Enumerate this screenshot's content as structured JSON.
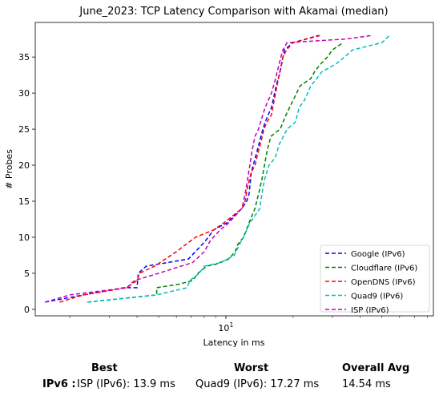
{
  "chart_data": {
    "type": "line",
    "title": "June_2023: TCP Latency Comparison with Akamai (median)",
    "xlabel": "Latency in ms",
    "ylabel": "# Probes",
    "x_scale": "log",
    "xlim": [
      1.4,
      85
    ],
    "ylim": [
      -0.9,
      39.8
    ],
    "x_ticks": [
      10
    ],
    "x_tick_labels": [
      "10^1"
    ],
    "y_ticks": [
      0,
      5,
      10,
      15,
      20,
      25,
      30,
      35
    ],
    "legend_position": "lower-right",
    "series": [
      {
        "name": "Google (IPv6)",
        "color": "#0000ff",
        "style": "dashed",
        "points": [
          [
            1.55,
            1
          ],
          [
            2.3,
            2
          ],
          [
            3.5,
            3
          ],
          [
            4.0,
            3
          ],
          [
            4.05,
            5
          ],
          [
            4.4,
            6
          ],
          [
            5.5,
            6.5
          ],
          [
            6.8,
            7
          ],
          [
            7.3,
            8
          ],
          [
            8.1,
            9.5
          ],
          [
            8.8,
            11
          ],
          [
            10.1,
            12
          ],
          [
            11.8,
            14
          ],
          [
            12.4,
            15
          ],
          [
            12.7,
            16
          ],
          [
            13.0,
            19
          ],
          [
            13.8,
            22
          ],
          [
            14.5,
            24.5
          ],
          [
            15.0,
            26
          ],
          [
            16.0,
            28
          ],
          [
            16.8,
            31
          ],
          [
            17.5,
            33
          ],
          [
            18.3,
            36
          ],
          [
            20.0,
            37
          ],
          [
            26.0,
            38
          ]
        ]
      },
      {
        "name": "Cloudflare (IPv6)",
        "color": "#008000",
        "style": "dashed",
        "points": [
          [
            2.4,
            1
          ],
          [
            4.9,
            2
          ],
          [
            4.9,
            3
          ],
          [
            6.2,
            3.5
          ],
          [
            7.1,
            4
          ],
          [
            7.5,
            5
          ],
          [
            8.2,
            6
          ],
          [
            9.1,
            6.3
          ],
          [
            10.3,
            7
          ],
          [
            11.0,
            8
          ],
          [
            11.3,
            9
          ],
          [
            12.0,
            10
          ],
          [
            12.7,
            12
          ],
          [
            13.5,
            14
          ],
          [
            14.0,
            16
          ],
          [
            14.5,
            18
          ],
          [
            14.9,
            20
          ],
          [
            15.3,
            22
          ],
          [
            15.9,
            24
          ],
          [
            17.5,
            25
          ],
          [
            18.6,
            27
          ],
          [
            20.0,
            29
          ],
          [
            21.5,
            31
          ],
          [
            24.0,
            32
          ],
          [
            25.0,
            33
          ],
          [
            26.5,
            34
          ],
          [
            28.5,
            35
          ],
          [
            30.0,
            36
          ],
          [
            33.5,
            37
          ]
        ]
      },
      {
        "name": "OpenDNS (IPv6)",
        "color": "#ff0000",
        "style": "dashed",
        "points": [
          [
            1.8,
            1
          ],
          [
            2.3,
            2
          ],
          [
            3.6,
            3
          ],
          [
            4.0,
            4
          ],
          [
            4.1,
            5
          ],
          [
            4.8,
            6
          ],
          [
            6.0,
            8
          ],
          [
            7.3,
            10
          ],
          [
            8.8,
            11
          ],
          [
            9.8,
            12
          ],
          [
            11.8,
            14
          ],
          [
            12.2,
            15
          ],
          [
            12.5,
            17
          ],
          [
            13.0,
            19
          ],
          [
            13.5,
            20
          ],
          [
            14.0,
            22
          ],
          [
            14.3,
            23
          ],
          [
            14.8,
            25
          ],
          [
            15.3,
            26
          ],
          [
            16.0,
            27
          ],
          [
            16.7,
            30
          ],
          [
            17.2,
            32
          ],
          [
            18.0,
            35
          ],
          [
            18.7,
            36
          ],
          [
            20.0,
            37
          ],
          [
            26.5,
            38
          ]
        ]
      },
      {
        "name": "Quad9 (IPv6)",
        "color": "#00bfbf",
        "style": "dashed",
        "points": [
          [
            2.4,
            1
          ],
          [
            4.9,
            2
          ],
          [
            6.7,
            3
          ],
          [
            6.9,
            4
          ],
          [
            7.6,
            5
          ],
          [
            8.0,
            6
          ],
          [
            9.5,
            6.5
          ],
          [
            10.9,
            7.5
          ],
          [
            11.5,
            9
          ],
          [
            12.0,
            10
          ],
          [
            12.8,
            12
          ],
          [
            13.5,
            13
          ],
          [
            14.2,
            14
          ],
          [
            14.5,
            16
          ],
          [
            14.9,
            18
          ],
          [
            15.6,
            20
          ],
          [
            16.6,
            21
          ],
          [
            17.4,
            23
          ],
          [
            18.8,
            25
          ],
          [
            20.5,
            26
          ],
          [
            21.3,
            28
          ],
          [
            22.5,
            29
          ],
          [
            24.0,
            31
          ],
          [
            25.5,
            32
          ],
          [
            27.0,
            33
          ],
          [
            31.0,
            34
          ],
          [
            34.0,
            35
          ],
          [
            37.0,
            36
          ],
          [
            50.0,
            37
          ],
          [
            54.0,
            38
          ]
        ]
      },
      {
        "name": "ISP (IPv6)",
        "color": "#bf00bf",
        "style": "dashed",
        "points": [
          [
            1.55,
            1
          ],
          [
            2.0,
            2
          ],
          [
            3.6,
            3
          ],
          [
            3.9,
            4
          ],
          [
            5.0,
            5
          ],
          [
            6.3,
            6
          ],
          [
            7.1,
            6.5
          ],
          [
            8.0,
            8
          ],
          [
            8.5,
            9.5
          ],
          [
            9.4,
            11
          ],
          [
            10.3,
            12
          ],
          [
            11.8,
            14
          ],
          [
            12.2,
            16
          ],
          [
            12.5,
            18
          ],
          [
            12.8,
            20
          ],
          [
            13.1,
            22
          ],
          [
            13.5,
            24
          ],
          [
            14.0,
            25
          ],
          [
            14.3,
            26
          ],
          [
            15.0,
            28
          ],
          [
            16.0,
            30
          ],
          [
            16.7,
            32
          ],
          [
            17.3,
            34
          ],
          [
            18.0,
            36
          ],
          [
            18.8,
            37
          ],
          [
            34.5,
            37.5
          ],
          [
            45.0,
            38
          ]
        ]
      }
    ]
  },
  "summary": {
    "headers": {
      "best": "Best",
      "worst": "Worst",
      "overall": "Overall Avg"
    },
    "row_label": "IPv6 :",
    "best": "ISP (IPv6): 13.9 ms",
    "worst": "Quad9 (IPv6): 17.27 ms",
    "overall": "14.54 ms"
  }
}
